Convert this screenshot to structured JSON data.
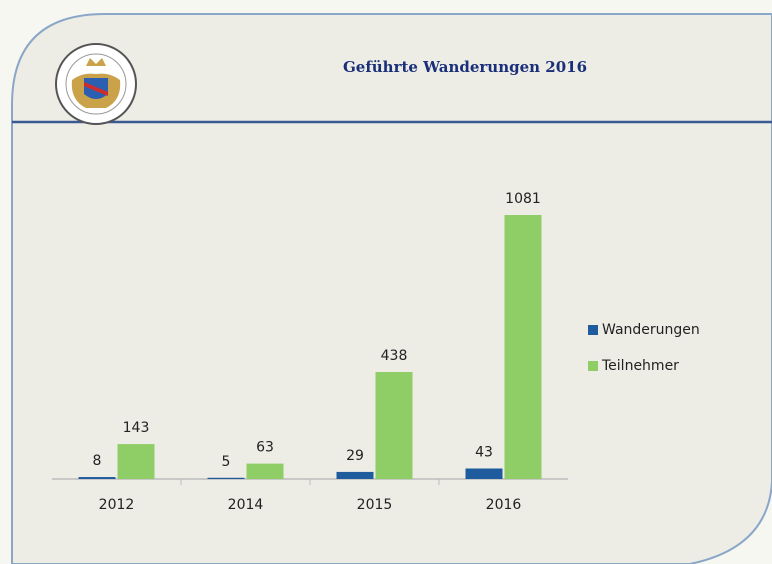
{
  "chart_data": {
    "type": "bar",
    "title": "Geführte Wanderungen 2016",
    "categories": [
      "2012",
      "2014",
      "2015",
      "2016"
    ],
    "series": [
      {
        "name": "Wanderungen",
        "color": "#1f5c9e",
        "values": [
          8,
          5,
          29,
          43
        ]
      },
      {
        "name": "Teilnehmer",
        "color": "#8fcd66",
        "values": [
          143,
          63,
          438,
          1081
        ]
      }
    ],
    "legend": "right"
  }
}
